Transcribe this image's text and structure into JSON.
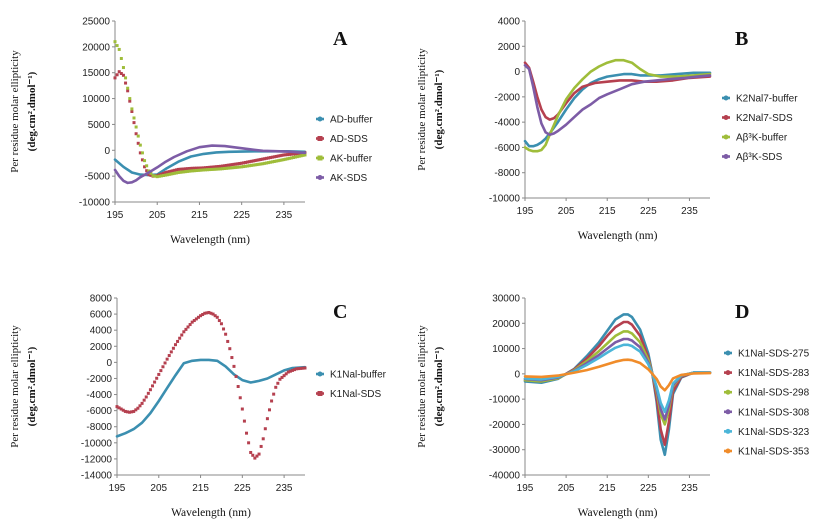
{
  "colors": {
    "blue": "#3b8fb0",
    "red": "#b5404f",
    "green": "#9fbd3a",
    "purple": "#7d5ca6",
    "cyan": "#4bb5d8",
    "orange": "#f08c2a"
  },
  "chart_data": [
    {
      "panel": "A",
      "type": "line",
      "xlabel": "Wavelength (nm)",
      "ylabel_line1": "Per residue molar ellipticity",
      "ylabel_line2": "(deg.cm².dmol⁻¹)",
      "xlim": [
        195,
        240
      ],
      "ylim": [
        -10000,
        25000
      ],
      "xticks": [
        195,
        205,
        215,
        225,
        235
      ],
      "yticks": [
        -10000,
        -5000,
        0,
        5000,
        10000,
        15000,
        20000,
        25000
      ],
      "legend_position": "right",
      "series": [
        {
          "name": "AD-buffer",
          "color": "blue",
          "style": "line",
          "x": [
            195,
            197,
            199,
            201,
            203,
            205,
            207,
            210,
            213,
            216,
            219,
            222,
            225,
            228,
            232,
            236,
            240
          ],
          "y": [
            -1800,
            -3200,
            -4300,
            -4700,
            -4800,
            -4700,
            -3600,
            -2200,
            -1200,
            -700,
            -400,
            -300,
            -250,
            -200,
            -200,
            -200,
            -300
          ]
        },
        {
          "name": "AD-SDS",
          "color": "red",
          "style": "dots",
          "x": [
            195,
            196,
            197,
            198,
            199,
            200,
            201,
            202,
            203,
            204,
            205,
            207,
            210,
            213,
            216,
            220,
            225,
            230,
            235,
            240
          ],
          "y": [
            14000,
            15200,
            14500,
            11500,
            7500,
            3200,
            -500,
            -3200,
            -4700,
            -5000,
            -4900,
            -4300,
            -3700,
            -3500,
            -3400,
            -3100,
            -2500,
            -1700,
            -900,
            -500
          ]
        },
        {
          "name": "AK-buffer",
          "color": "green",
          "style": "dots",
          "x": [
            195,
            196,
            197,
            198,
            199,
            200,
            201,
            202,
            203,
            204,
            205,
            207,
            210,
            213,
            216,
            220,
            225,
            230,
            235,
            240
          ],
          "y": [
            21000,
            19500,
            16000,
            12000,
            8000,
            4500,
            1000,
            -2000,
            -4000,
            -4900,
            -5100,
            -4800,
            -4300,
            -4000,
            -3800,
            -3600,
            -3200,
            -2600,
            -1800,
            -900
          ]
        },
        {
          "name": "AK-SDS",
          "color": "purple",
          "style": "line",
          "x": [
            195,
            196,
            197,
            198,
            199,
            200,
            201,
            203,
            205,
            207,
            209,
            212,
            215,
            218,
            221,
            224,
            227,
            230,
            234,
            237,
            240
          ],
          "y": [
            -3800,
            -5000,
            -5900,
            -6300,
            -6200,
            -5800,
            -5200,
            -4300,
            -3300,
            -2200,
            -1300,
            -200,
            600,
            900,
            800,
            500,
            200,
            -100,
            -200,
            -300,
            -500
          ]
        }
      ]
    },
    {
      "panel": "B",
      "type": "line",
      "xlabel": "Wavelength (nm)",
      "ylabel_line1": "Per residue molar ellipticity",
      "ylabel_line2": "(deg.cm².dmol⁻¹)",
      "xlim": [
        195,
        240
      ],
      "ylim": [
        -10000,
        4000
      ],
      "xticks": [
        195,
        205,
        215,
        225,
        235
      ],
      "yticks": [
        -10000,
        -8000,
        -6000,
        -4000,
        -2000,
        0,
        2000,
        4000
      ],
      "legend_position": "right",
      "series": [
        {
          "name": "K2Nal7-buffer",
          "color": "blue",
          "style": "line",
          "x": [
            195,
            196,
            197,
            198,
            199,
            200,
            201,
            203,
            205,
            207,
            209,
            211,
            213,
            215,
            217,
            219,
            221,
            223,
            225,
            228,
            232,
            236,
            240
          ],
          "y": [
            -5500,
            -5900,
            -5900,
            -5800,
            -5600,
            -5300,
            -4900,
            -4000,
            -3000,
            -2100,
            -1400,
            -900,
            -600,
            -400,
            -300,
            -200,
            -200,
            -300,
            -300,
            -300,
            -200,
            -100,
            -100
          ]
        },
        {
          "name": "K2Nal7-SDS",
          "color": "red",
          "style": "line",
          "x": [
            195,
            196,
            197,
            198,
            199,
            200,
            201,
            202,
            203,
            205,
            207,
            209,
            212,
            215,
            218,
            221,
            224,
            227,
            231,
            235,
            240
          ],
          "y": [
            700,
            300,
            -800,
            -2000,
            -3000,
            -3600,
            -3800,
            -3700,
            -3400,
            -2500,
            -1700,
            -1200,
            -900,
            -800,
            -700,
            -700,
            -800,
            -800,
            -700,
            -500,
            -400
          ]
        },
        {
          "name": "Aβ³K-buffer",
          "color": "green",
          "style": "line",
          "x": [
            195,
            196,
            197,
            198,
            199,
            200,
            201,
            203,
            205,
            207,
            209,
            211,
            213,
            215,
            217,
            219,
            221,
            223,
            225,
            228,
            232,
            236,
            240
          ],
          "y": [
            -6000,
            -6200,
            -6300,
            -6300,
            -6200,
            -5800,
            -5000,
            -3500,
            -2200,
            -1300,
            -600,
            0,
            400,
            700,
            900,
            900,
            700,
            200,
            -200,
            -400,
            -400,
            -300,
            -200
          ]
        },
        {
          "name": "Aβ³K-SDS",
          "color": "purple",
          "style": "line",
          "x": [
            195,
            196,
            197,
            198,
            199,
            200,
            201,
            202,
            203,
            205,
            207,
            209,
            211,
            213,
            215,
            218,
            221,
            224,
            227,
            230,
            234,
            237,
            240
          ],
          "y": [
            500,
            200,
            -1200,
            -2800,
            -4100,
            -4800,
            -5000,
            -4900,
            -4700,
            -4200,
            -3600,
            -3000,
            -2600,
            -2100,
            -1800,
            -1400,
            -1000,
            -800,
            -700,
            -600,
            -500,
            -400,
            -300
          ]
        }
      ]
    },
    {
      "panel": "C",
      "type": "line",
      "xlabel": "Wavelength (nm)",
      "ylabel_line1": "Per residue molar ellipticity",
      "ylabel_line2": "(deg.cm².dmol⁻¹)",
      "xlim": [
        195,
        240
      ],
      "ylim": [
        -14000,
        8000
      ],
      "xticks": [
        195,
        205,
        215,
        225,
        235
      ],
      "yticks": [
        -14000,
        -12000,
        -10000,
        -8000,
        -6000,
        -4000,
        -2000,
        0,
        2000,
        4000,
        6000,
        8000
      ],
      "legend_position": "right",
      "series": [
        {
          "name": "K1Nal-buffer",
          "color": "blue",
          "style": "line",
          "x": [
            195,
            197,
            199,
            201,
            203,
            205,
            207,
            209,
            211,
            213,
            215,
            217,
            219,
            221,
            223,
            225,
            227,
            229,
            231,
            233,
            235,
            237,
            240
          ],
          "y": [
            -9200,
            -8800,
            -8300,
            -7500,
            -6300,
            -4800,
            -3200,
            -1600,
            -100,
            200,
            300,
            300,
            200,
            -500,
            -1500,
            -2200,
            -2500,
            -2300,
            -2000,
            -1500,
            -1000,
            -700,
            -600
          ]
        },
        {
          "name": "K1Nal-SDS",
          "color": "red",
          "style": "dots",
          "x": [
            195,
            196,
            197,
            198,
            199,
            200,
            201,
            202,
            203,
            205,
            207,
            209,
            211,
            213,
            215,
            216,
            217,
            218,
            219,
            220,
            221,
            222,
            223,
            224,
            225,
            226,
            227,
            228,
            229,
            230,
            231,
            232,
            233,
            234,
            236,
            238,
            240
          ],
          "y": [
            -5500,
            -5800,
            -6100,
            -6200,
            -6100,
            -5700,
            -5100,
            -4300,
            -3400,
            -1500,
            400,
            2200,
            3800,
            5000,
            5800,
            6100,
            6200,
            6000,
            5600,
            4800,
            3500,
            1700,
            -500,
            -3000,
            -5800,
            -8800,
            -11200,
            -11900,
            -11400,
            -9500,
            -7000,
            -4800,
            -3100,
            -2100,
            -1200,
            -800,
            -700
          ]
        }
      ]
    },
    {
      "panel": "D",
      "type": "line",
      "xlabel": "Wavelength (nm)",
      "ylabel_line1": "Per residue molar ellipticity",
      "ylabel_line2": "(deg.cm².dmol⁻¹)",
      "xlim": [
        195,
        240
      ],
      "ylim": [
        -40000,
        30000
      ],
      "xticks": [
        195,
        205,
        215,
        225,
        235
      ],
      "yticks": [
        -40000,
        -30000,
        -20000,
        -10000,
        0,
        10000,
        20000,
        30000
      ],
      "legend_position": "right",
      "series": [
        {
          "name": "K1Nal-SDS-275",
          "color": "blue",
          "style": "line",
          "x": [
            195,
            199,
            203,
            207,
            210,
            213,
            215,
            217,
            219,
            220,
            221,
            223,
            225,
            226,
            227,
            228,
            229,
            230,
            231,
            233,
            236,
            240
          ],
          "y": [
            -3000,
            -3500,
            -2000,
            2000,
            7000,
            12500,
            17000,
            21500,
            23500,
            23500,
            22500,
            17500,
            8000,
            0,
            -11000,
            -26000,
            -32000,
            -22000,
            -8000,
            -1500,
            500,
            500
          ]
        },
        {
          "name": "K1Nal-SDS-283",
          "color": "red",
          "style": "line",
          "x": [
            195,
            199,
            203,
            207,
            210,
            213,
            215,
            217,
            219,
            220,
            221,
            223,
            225,
            226,
            227,
            228,
            229,
            230,
            231,
            233,
            236,
            240
          ],
          "y": [
            -2500,
            -3000,
            -1800,
            1800,
            6000,
            11000,
            15000,
            18500,
            20500,
            20500,
            19500,
            15000,
            6500,
            0,
            -9500,
            -22000,
            -28000,
            -19000,
            -7000,
            -1200,
            500,
            500
          ]
        },
        {
          "name": "K1Nal-SDS-298",
          "color": "green",
          "style": "line",
          "x": [
            195,
            199,
            203,
            207,
            210,
            213,
            215,
            217,
            219,
            220,
            221,
            223,
            225,
            226,
            227,
            228,
            229,
            230,
            231,
            233,
            236,
            240
          ],
          "y": [
            -2500,
            -3000,
            -1800,
            1500,
            5000,
            9000,
            12000,
            15000,
            16800,
            16800,
            16000,
            12500,
            5500,
            0,
            -7000,
            -16000,
            -20000,
            -14000,
            -5000,
            -800,
            500,
            500
          ]
        },
        {
          "name": "K1Nal-SDS-308",
          "color": "purple",
          "style": "line",
          "x": [
            195,
            199,
            203,
            207,
            210,
            213,
            215,
            217,
            219,
            220,
            221,
            223,
            225,
            226,
            227,
            228,
            229,
            230,
            231,
            233,
            236,
            240
          ],
          "y": [
            -2000,
            -2500,
            -1500,
            1200,
            4200,
            7500,
            10000,
            12500,
            13800,
            13800,
            13200,
            10500,
            4500,
            0,
            -6000,
            -14000,
            -18000,
            -12500,
            -4500,
            -700,
            500,
            500
          ]
        },
        {
          "name": "K1Nal-SDS-323",
          "color": "cyan",
          "style": "line",
          "x": [
            195,
            199,
            203,
            207,
            210,
            213,
            215,
            217,
            219,
            220,
            221,
            223,
            225,
            226,
            227,
            228,
            229,
            230,
            231,
            233,
            236,
            240
          ],
          "y": [
            -1800,
            -2200,
            -1200,
            1000,
            3500,
            6300,
            8400,
            10300,
            11500,
            11500,
            11000,
            8800,
            3800,
            0,
            -5000,
            -11500,
            -15000,
            -10500,
            -3800,
            -600,
            500,
            500
          ]
        },
        {
          "name": "K1Nal-SDS-353",
          "color": "orange",
          "style": "line",
          "x": [
            195,
            199,
            203,
            207,
            210,
            213,
            215,
            217,
            219,
            220,
            221,
            223,
            225,
            226,
            227,
            228,
            229,
            230,
            231,
            233,
            236,
            240
          ],
          "y": [
            -1000,
            -1200,
            -700,
            500,
            1500,
            2800,
            3800,
            4800,
            5500,
            5600,
            5400,
            4300,
            1800,
            0,
            -2000,
            -5000,
            -6500,
            -4500,
            -1800,
            -400,
            200,
            300
          ]
        }
      ]
    }
  ]
}
